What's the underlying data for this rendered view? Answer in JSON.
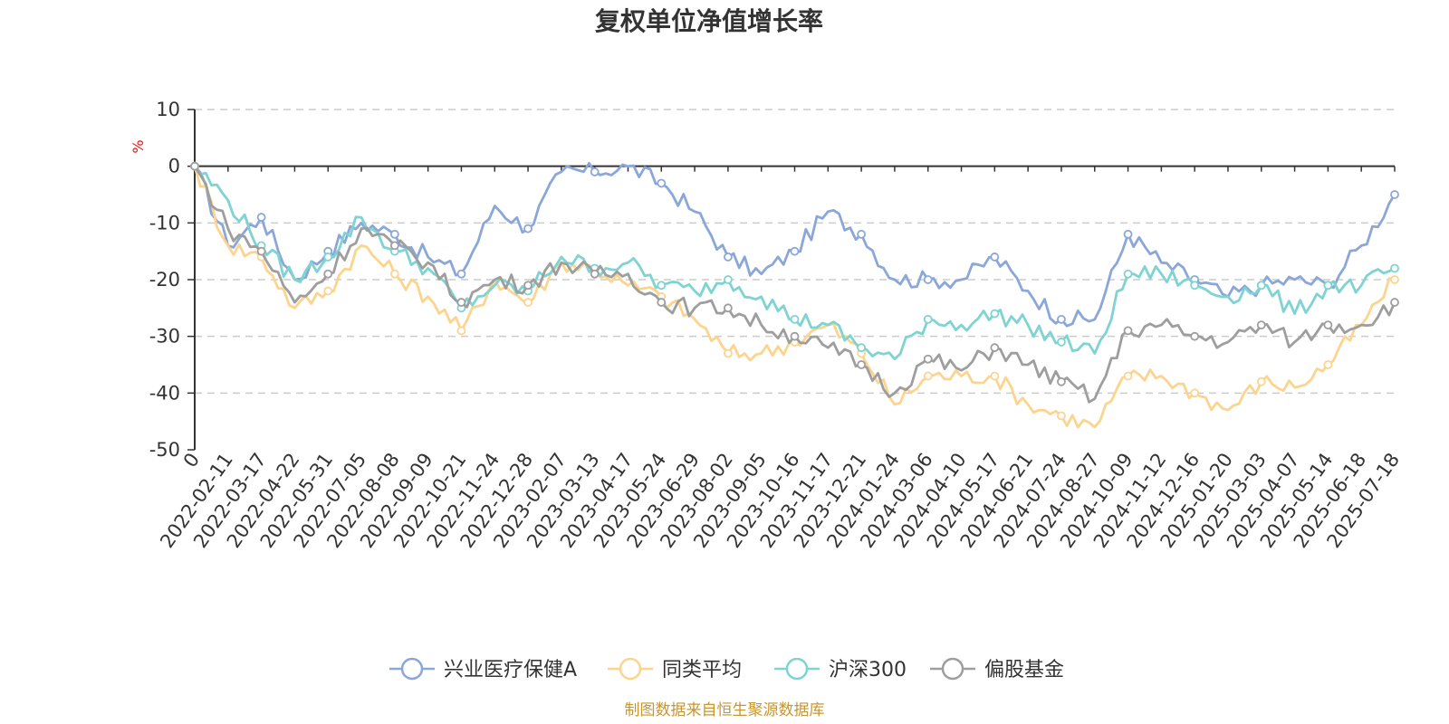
{
  "chart_data": {
    "type": "line",
    "title": "复权单位净值增长率",
    "ylabel": "%",
    "ylim": [
      -50,
      10
    ],
    "yticks": [
      10,
      0,
      -10,
      -20,
      -30,
      -40,
      -50
    ],
    "grid": true,
    "legend_position": "bottom",
    "source": "制图数据来自恒生聚源数据库",
    "x": [
      "0",
      "2022-02-11",
      "2022-03-17",
      "2022-04-22",
      "2022-05-31",
      "2022-07-05",
      "2022-08-08",
      "2022-09-09",
      "2022-10-21",
      "2022-11-24",
      "2022-12-28",
      "2023-02-07",
      "2023-03-13",
      "2023-04-17",
      "2023-05-24",
      "2023-06-29",
      "2023-08-02",
      "2023-09-05",
      "2023-10-16",
      "2023-11-17",
      "2023-12-21",
      "2024-01-24",
      "2024-03-06",
      "2024-04-10",
      "2024-05-17",
      "2024-06-21",
      "2024-07-24",
      "2024-08-27",
      "2024-10-09",
      "2024-11-12",
      "2024-12-16",
      "2025-01-20",
      "2025-03-03",
      "2025-04-07",
      "2025-05-14",
      "2025-06-18",
      "2025-07-18"
    ],
    "series": [
      {
        "name": "兴业医疗保健A",
        "color": "#8ba7d9",
        "values": [
          0,
          -14,
          -9,
          -20,
          -15,
          -10,
          -12,
          -16,
          -19,
          -7,
          -11,
          -1,
          -1,
          0,
          -3,
          -8,
          -16,
          -19,
          -15,
          -8,
          -12,
          -20,
          -20,
          -20,
          -16,
          -22,
          -27,
          -27,
          -12,
          -17,
          -20,
          -23,
          -21,
          -20,
          -21,
          -14,
          -5
        ]
      },
      {
        "name": "同类平均",
        "color": "#fdd48e",
        "values": [
          0,
          -14,
          -16,
          -25,
          -22,
          -14,
          -19,
          -23,
          -29,
          -20,
          -24,
          -17,
          -18,
          -21,
          -23,
          -27,
          -33,
          -33,
          -31,
          -28,
          -33,
          -42,
          -37,
          -37,
          -37,
          -42,
          -44,
          -46,
          -37,
          -37,
          -40,
          -43,
          -38,
          -39,
          -35,
          -28,
          -20
        ]
      },
      {
        "name": "沪深300",
        "color": "#7ed3d3",
        "values": [
          0,
          -6,
          -14,
          -20,
          -16,
          -9,
          -15,
          -18,
          -25,
          -21,
          -22,
          -16,
          -18,
          -17,
          -21,
          -22,
          -20,
          -23,
          -27,
          -28,
          -32,
          -34,
          -27,
          -28,
          -26,
          -28,
          -31,
          -33,
          -19,
          -19,
          -21,
          -23,
          -21,
          -26,
          -21,
          -21,
          -18
        ]
      },
      {
        "name": "偏股基金",
        "color": "#9e9e9e",
        "values": [
          0,
          -11,
          -15,
          -24,
          -19,
          -11,
          -14,
          -17,
          -24,
          -20,
          -21,
          -17,
          -19,
          -19,
          -24,
          -25,
          -25,
          -28,
          -30,
          -32,
          -35,
          -40,
          -34,
          -36,
          -32,
          -35,
          -38,
          -41,
          -29,
          -28,
          -30,
          -31,
          -28,
          -31,
          -28,
          -28,
          -24
        ]
      }
    ]
  }
}
